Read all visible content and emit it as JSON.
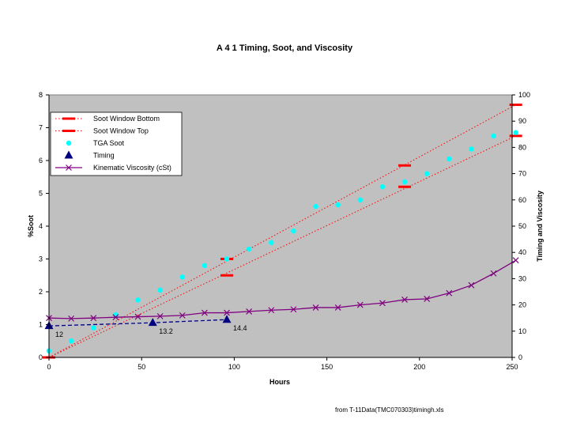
{
  "chart_data": {
    "type": "line",
    "title": "A 4 1 Timing, Soot, and Viscosity",
    "xlabel": "Hours",
    "ylabel": "%Soot",
    "y2label": "Timing and Viscosity",
    "xlim": [
      0,
      250
    ],
    "ylim": [
      0,
      8
    ],
    "y2lim": [
      0,
      100
    ],
    "xticks": [
      0,
      50,
      100,
      150,
      200,
      250
    ],
    "yticks": [
      0,
      1,
      2,
      3,
      4,
      5,
      6,
      7,
      8
    ],
    "y2ticks": [
      0,
      10,
      20,
      30,
      40,
      50,
      60,
      70,
      80,
      90,
      100
    ],
    "grid": false,
    "legend_position": "top-left",
    "background": "#c0c0c0",
    "footer": "from T-11Data(TMC070303)timingh.xls",
    "series": [
      {
        "name": "Soot Window Bottom",
        "axis": "left",
        "style": "dash-marker",
        "color": "#ff0000",
        "x": [
          0,
          96,
          192,
          252
        ],
        "y": [
          0.0,
          2.5,
          5.2,
          6.75
        ],
        "trendline": [
          [
            0,
            0.0
          ],
          [
            252,
            6.75
          ]
        ]
      },
      {
        "name": "Soot Window Top",
        "axis": "left",
        "style": "dash-marker",
        "color": "#ff0000",
        "x": [
          0,
          96,
          192,
          252
        ],
        "y": [
          0.0,
          3.0,
          5.85,
          7.7
        ],
        "trendline": [
          [
            0,
            0.0
          ],
          [
            252,
            7.7
          ]
        ]
      },
      {
        "name": "TGA Soot",
        "axis": "left",
        "style": "circle",
        "color": "#00ffff",
        "x": [
          0,
          12,
          24,
          36,
          48,
          60,
          72,
          84,
          96,
          108,
          120,
          132,
          144,
          156,
          168,
          180,
          192,
          204,
          216,
          228,
          240,
          252
        ],
        "y": [
          0.2,
          0.5,
          0.9,
          1.3,
          1.75,
          2.05,
          2.45,
          2.8,
          3.0,
          3.3,
          3.5,
          3.85,
          4.6,
          4.65,
          4.8,
          5.2,
          5.35,
          5.6,
          6.05,
          6.35,
          6.75,
          6.85
        ]
      },
      {
        "name": "Timing",
        "axis": "right",
        "style": "triangle-dashed",
        "color": "#000080",
        "x": [
          0,
          56,
          96
        ],
        "y": [
          12,
          13.2,
          14.4
        ],
        "data_labels": [
          "12",
          "13.2",
          "14.4"
        ]
      },
      {
        "name": "Kinematic Viscosity (cSt)",
        "axis": "right",
        "style": "x-line",
        "color": "#800080",
        "x": [
          0,
          12,
          24,
          36,
          48,
          60,
          72,
          84,
          96,
          108,
          120,
          132,
          144,
          156,
          168,
          180,
          192,
          204,
          216,
          228,
          240,
          252
        ],
        "y": [
          15.0,
          14.8,
          15.0,
          15.3,
          15.5,
          15.7,
          16.0,
          17.0,
          17.0,
          17.5,
          18.0,
          18.3,
          19.0,
          19.0,
          20.0,
          20.7,
          22.0,
          22.3,
          24.5,
          27.5,
          32.0,
          37.0
        ]
      }
    ]
  }
}
